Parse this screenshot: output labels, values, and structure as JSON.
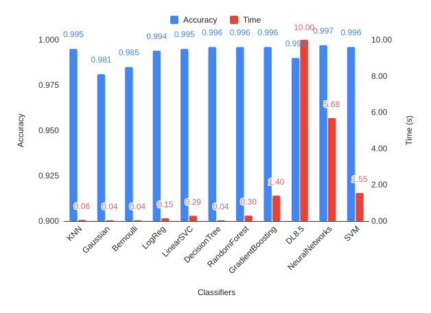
{
  "chart_data": {
    "type": "bar",
    "title": "",
    "xlabel": "Classifiers",
    "ylabel": "Accuracy",
    "y2label": "Time (s)",
    "categories": [
      "KNN",
      "Gaussian",
      "Bernoulli",
      "LogReg",
      "LinearSVC",
      "DecisionTree",
      "RandomForest",
      "GradientBoosting",
      "DL8.5",
      "NeuralNetworks",
      "SVM"
    ],
    "series": [
      {
        "name": "Accuracy",
        "axis": "left",
        "color": "#4285f4",
        "label_color": "#4a86e8",
        "values": [
          0.995,
          0.981,
          0.985,
          0.994,
          0.995,
          0.996,
          0.996,
          0.996,
          0.99,
          0.997,
          0.996
        ],
        "labels": [
          "0.995",
          "0.981",
          "0.985",
          "0.994",
          "0.995",
          "0.996",
          "0.996",
          "0.996",
          "0.990",
          "0.997",
          "0.996"
        ]
      },
      {
        "name": "Time",
        "axis": "right",
        "color": "#ea4335",
        "label_color": "#e06666",
        "values": [
          0.06,
          0.04,
          0.04,
          0.15,
          0.29,
          0.04,
          0.3,
          1.4,
          10.0,
          5.68,
          1.55
        ],
        "labels": [
          "0.06",
          "0.04",
          "0.04",
          "0.15",
          "0.29",
          "0.04",
          "0.30",
          "1.40",
          "10.00",
          "5.68",
          "1.55"
        ]
      }
    ],
    "ylim": [
      0.9,
      1.0
    ],
    "y2lim": [
      0,
      10
    ],
    "yticks": [
      "0.900",
      "0.925",
      "0.950",
      "0.975",
      "1.000"
    ],
    "y2ticks": [
      "0.00",
      "2.00",
      "4.00",
      "6.00",
      "8.00",
      "10.00"
    ],
    "legend": "top-center",
    "grid": false
  }
}
